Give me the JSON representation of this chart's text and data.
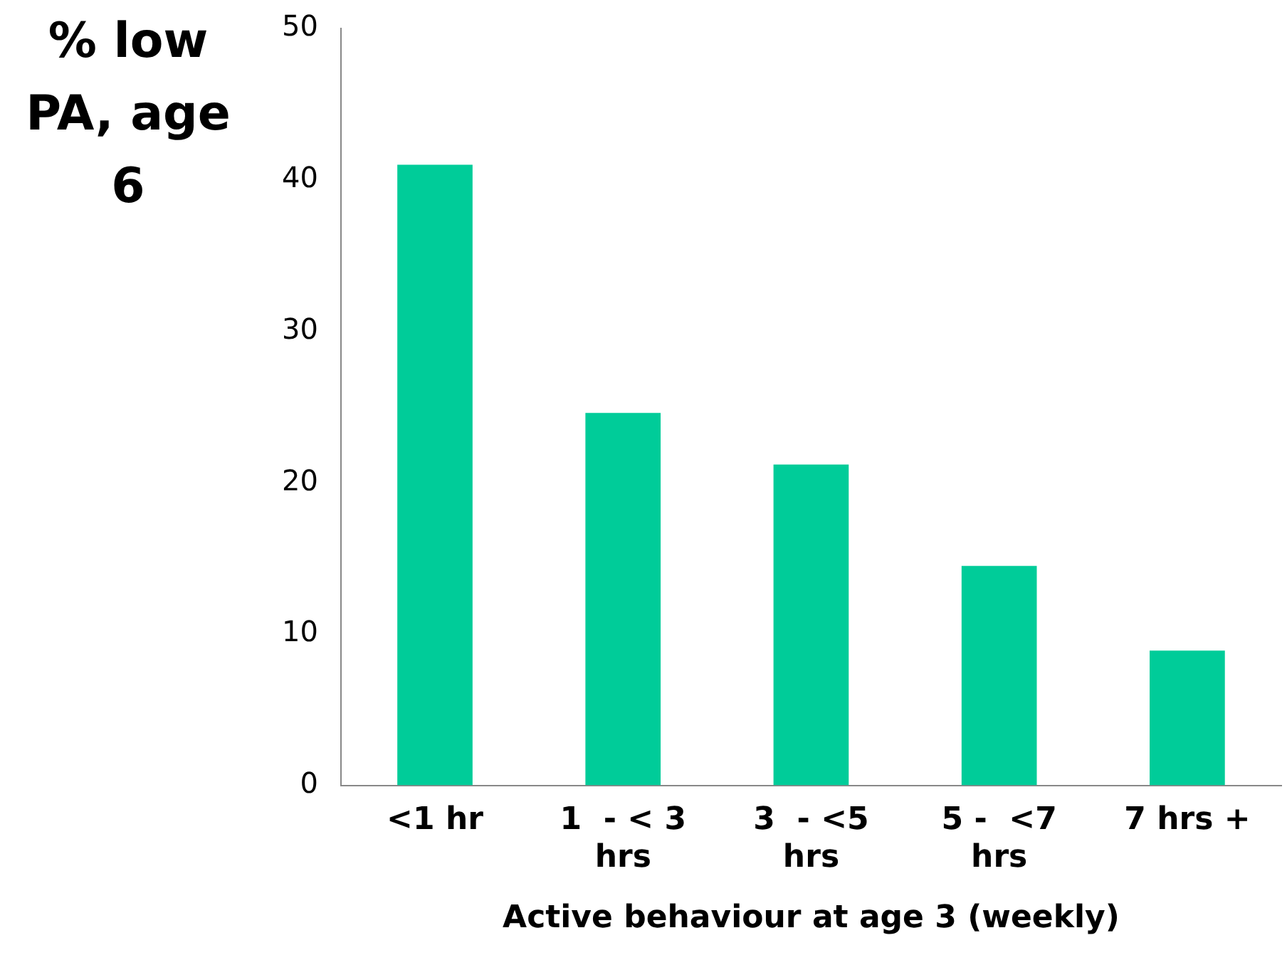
{
  "chart_data": {
    "type": "bar",
    "ylabel": "% low PA, age 6",
    "xlabel": "Active behaviour at age 3 (weekly)",
    "categories": [
      "<1 hr",
      "1  - < 3 hrs",
      "3  - <5 hrs",
      "5 -  <7 hrs",
      "7 hrs +"
    ],
    "values": [
      41,
      24.6,
      21.2,
      14.5,
      8.9
    ],
    "color": "#00cc99",
    "ylim": [
      0,
      50
    ],
    "yticks": [
      0,
      10,
      20,
      30,
      40,
      50
    ],
    "grid": false,
    "legend": false
  }
}
